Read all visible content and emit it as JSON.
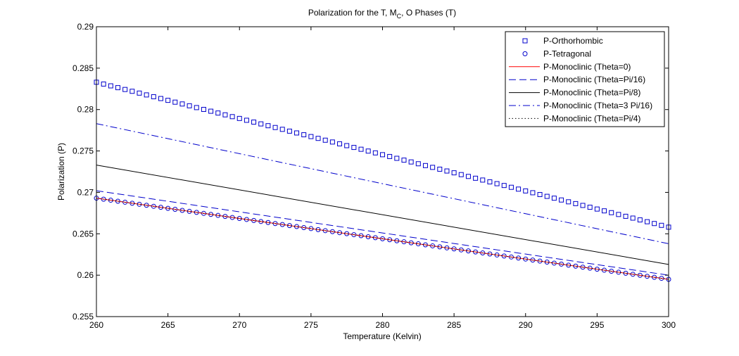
{
  "chart_data": {
    "type": "line",
    "title": "Polarization for the T, M",
    "title_sub": "C",
    "title_end": ", O Phases (T)",
    "xlabel": "Temperature (Kelvin)",
    "ylabel": "Polarization (P)",
    "xlim": [
      260,
      300
    ],
    "ylim": [
      0.255,
      0.29
    ],
    "xticks": [
      260,
      265,
      270,
      275,
      280,
      285,
      290,
      295,
      300
    ],
    "yticks": [
      0.255,
      0.26,
      0.265,
      0.27,
      0.275,
      0.28,
      0.285,
      0.29
    ],
    "xtick_labels": [
      "260",
      "265",
      "270",
      "275",
      "280",
      "285",
      "290",
      "295",
      "300"
    ],
    "ytick_labels": [
      "0.255",
      "0.26",
      "0.265",
      "0.27",
      "0.275",
      "0.28",
      "0.285",
      "0.29"
    ],
    "grid": false,
    "legend_position": "top-right",
    "colors": {
      "blue": "#0000cc",
      "red": "#ff0000",
      "black": "#000000",
      "axis": "#000000"
    },
    "series": [
      {
        "name": "P-Orthorhombic",
        "marker": "square",
        "line": "none",
        "color": "#0000cc",
        "points": 81,
        "x": [
          260,
          300
        ],
        "y": [
          0.2833,
          0.2658
        ]
      },
      {
        "name": "P-Tetragonal",
        "marker": "circle",
        "line": "none",
        "color": "#0000cc",
        "points": 81,
        "x": [
          260,
          300
        ],
        "y": [
          0.2693,
          0.2595
        ]
      },
      {
        "name": "P-Monoclinic (Theta=0)",
        "marker": "none",
        "line": "solid",
        "color": "#ff0000",
        "x": [
          260,
          300
        ],
        "y": [
          0.2693,
          0.2595
        ]
      },
      {
        "name": "P-Monoclinic (Theta=Pi/16)",
        "marker": "none",
        "line": "dashed",
        "color": "#0000cc",
        "x": [
          260,
          300
        ],
        "y": [
          0.2702,
          0.26
        ]
      },
      {
        "name": "P-Monoclinic (Theta=Pi/8)",
        "marker": "none",
        "line": "solid",
        "color": "#000000",
        "x": [
          260,
          300
        ],
        "y": [
          0.2733,
          0.2613
        ]
      },
      {
        "name": "P-Monoclinic (Theta=3 Pi/16)",
        "marker": "none",
        "line": "dashdot",
        "color": "#0000cc",
        "x": [
          260,
          300
        ],
        "y": [
          0.2783,
          0.2638
        ]
      },
      {
        "name": "P-Monoclinic (Theta=Pi/4)",
        "marker": "none",
        "line": "dotted",
        "color": "#000000",
        "x": [
          260,
          300
        ],
        "y": [
          0.2693,
          0.2595
        ]
      }
    ]
  }
}
